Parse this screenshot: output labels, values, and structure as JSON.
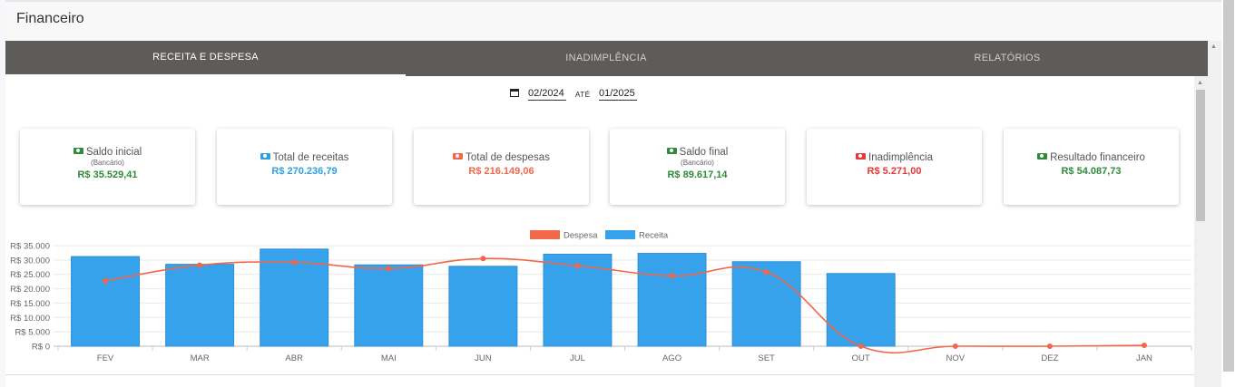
{
  "header": {
    "title": "Financeiro"
  },
  "tabs": [
    {
      "label": "RECEITA E DESPESA",
      "active": true
    },
    {
      "label": "INADIMPLÊNCIA",
      "active": false
    },
    {
      "label": "RELATÓRIOS",
      "active": false
    }
  ],
  "date_range": {
    "icon": "calendar-icon",
    "from": "02/2024",
    "separator": "ATÉ",
    "to": "01/2025"
  },
  "cards": [
    {
      "label": "Saldo inicial",
      "sublabel": "(Bancário)",
      "value": "R$ 35.529,41",
      "color": "#2e8b3a",
      "icon": "money-icon"
    },
    {
      "label": "Total de receitas",
      "sublabel": "",
      "value": "R$ 270.236,79",
      "color": "#2f9fe0",
      "icon": "money-icon"
    },
    {
      "label": "Total de despesas",
      "sublabel": "",
      "value": "R$ 216.149,06",
      "color": "#f2674a",
      "icon": "money-icon"
    },
    {
      "label": "Saldo final",
      "sublabel": "(Bancário)",
      "value": "R$ 89.617,14",
      "color": "#2e8b3a",
      "icon": "money-icon"
    },
    {
      "label": "Inadimplência",
      "sublabel": "",
      "value": "R$ 5.271,00",
      "color": "#e53935",
      "icon": "money-icon"
    },
    {
      "label": "Resultado financeiro",
      "sublabel": "",
      "value": "R$ 54.087,73",
      "color": "#2e8b3a",
      "icon": "money-icon"
    }
  ],
  "chart_data": {
    "type": "bar",
    "categories": [
      "FEV",
      "MAR",
      "ABR",
      "MAI",
      "JUN",
      "JUL",
      "AGO",
      "SET",
      "OUT",
      "NOV",
      "DEZ",
      "JAN"
    ],
    "series": [
      {
        "name": "Despesa",
        "type": "line",
        "color": "#f2674a",
        "values": [
          22700,
          28200,
          29200,
          27000,
          30500,
          28000,
          24500,
          25800,
          0,
          0,
          0,
          300
        ]
      },
      {
        "name": "Receita",
        "type": "bar",
        "color": "#36a2eb",
        "values": [
          31200,
          28500,
          33800,
          28300,
          27800,
          32000,
          32300,
          29400,
          25300,
          0,
          0,
          0
        ]
      }
    ],
    "yticks": [
      "R$ 35.000",
      "R$ 30.000",
      "R$ 25.000",
      "R$ 20.000",
      "R$ 15.000",
      "R$ 10.000",
      "R$ 5.000",
      "R$ 0"
    ],
    "ylim": [
      0,
      35000
    ],
    "legend_position": "top",
    "grid": true
  }
}
